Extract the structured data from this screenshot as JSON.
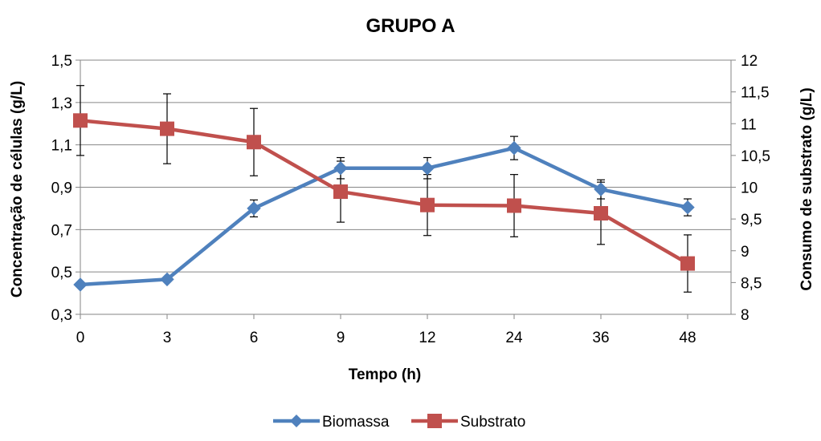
{
  "chart_data": {
    "type": "line",
    "title": "GRUPO A",
    "xlabel": "Tempo (h)",
    "ylabel_left": "Concentração de células (g/L)",
    "ylabel_right": "Consumo de substrato (g/L)",
    "categories": [
      "0",
      "3",
      "6",
      "9",
      "12",
      "24",
      "36",
      "48"
    ],
    "y_left": {
      "min": 0.3,
      "max": 1.5,
      "ticks": [
        "0,3",
        "0,5",
        "0,7",
        "0,9",
        "1,1",
        "1,3",
        "1,5"
      ]
    },
    "y_right": {
      "min": 8,
      "max": 12,
      "ticks": [
        "8",
        "8,5",
        "9",
        "9,5",
        "10",
        "10,5",
        "11",
        "11,5",
        "12"
      ]
    },
    "grid": true,
    "legend_position": "bottom",
    "series": [
      {
        "name": "Biomassa",
        "axis": "left",
        "color": "#4F81BD",
        "marker": "diamond",
        "values": [
          0.44,
          0.465,
          0.8,
          0.99,
          0.99,
          1.085,
          0.89,
          0.805
        ],
        "errors": [
          0.0,
          0.0,
          0.04,
          0.05,
          0.05,
          0.055,
          0.045,
          0.04
        ]
      },
      {
        "name": "Substrato",
        "axis": "right",
        "color": "#C0504D",
        "marker": "square",
        "values": [
          11.05,
          10.92,
          10.71,
          9.93,
          9.72,
          9.71,
          9.59,
          8.8
        ],
        "errors": [
          0.55,
          0.55,
          0.53,
          0.48,
          0.48,
          0.49,
          0.49,
          0.45
        ]
      }
    ]
  }
}
